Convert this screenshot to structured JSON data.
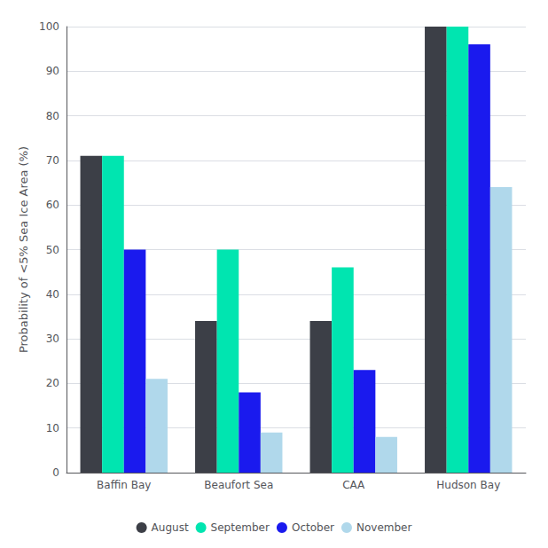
{
  "chart_data": {
    "type": "bar",
    "ylabel": "Probability of <5% Sea Ice Area (%)",
    "categories": [
      "Baffin Bay",
      "Beaufort Sea",
      "CAA",
      "Hudson Bay"
    ],
    "series": [
      {
        "name": "August",
        "color": "#3c3f47",
        "values": [
          71,
          34,
          34,
          100
        ]
      },
      {
        "name": "September",
        "color": "#00e5b0",
        "values": [
          71,
          50,
          46,
          100
        ]
      },
      {
        "name": "October",
        "color": "#1a1aee",
        "values": [
          50,
          18,
          23,
          96
        ]
      },
      {
        "name": "November",
        "color": "#b0d8eb",
        "values": [
          21,
          9,
          8,
          64
        ]
      }
    ],
    "ylim": [
      0,
      100
    ],
    "yticks": [
      0,
      10,
      20,
      30,
      40,
      50,
      60,
      70,
      80,
      90,
      100
    ],
    "grid": true,
    "legend": "bottom"
  }
}
